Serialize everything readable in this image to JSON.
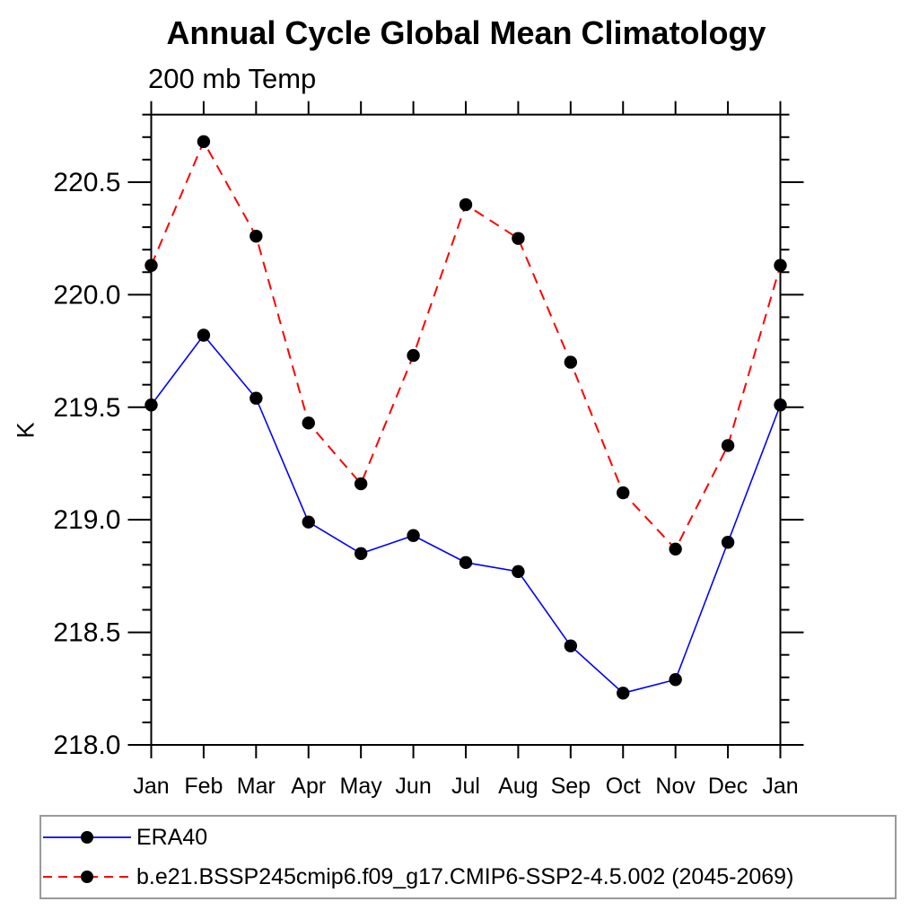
{
  "chart_data": {
    "type": "line",
    "title": "Annual Cycle Global Mean Climatology",
    "subtitle": "200 mb Temp",
    "ylabel": "K",
    "categories": [
      "Jan",
      "Feb",
      "Mar",
      "Apr",
      "May",
      "Jun",
      "Jul",
      "Aug",
      "Sep",
      "Oct",
      "Nov",
      "Dec",
      "Jan"
    ],
    "ylim": [
      218.0,
      220.8
    ],
    "ytick_major_start": 218.0,
    "ytick_major_step": 0.5,
    "ytick_major_end": 220.5,
    "ytick_minor_step": 0.1,
    "grid": false,
    "legend_position": "bottom-left-box",
    "axis_color": "#000000",
    "marker": "filled-circle",
    "marker_color": "#000000",
    "series": [
      {
        "name": "ERA40",
        "color": "#0000ff",
        "style": "solid",
        "values": [
          219.51,
          219.82,
          219.54,
          218.99,
          218.85,
          218.93,
          218.81,
          218.77,
          218.44,
          218.23,
          218.29,
          218.9,
          219.51
        ]
      },
      {
        "name": "b.e21.BSSP245cmip6.f09_g17.CMIP6-SSP2-4.5.002 (2045-2069)",
        "color": "#ff0000",
        "style": "dashed",
        "values": [
          220.13,
          220.68,
          220.26,
          219.43,
          219.16,
          219.73,
          220.4,
          220.25,
          219.7,
          219.12,
          218.87,
          219.33,
          220.13
        ]
      }
    ]
  }
}
